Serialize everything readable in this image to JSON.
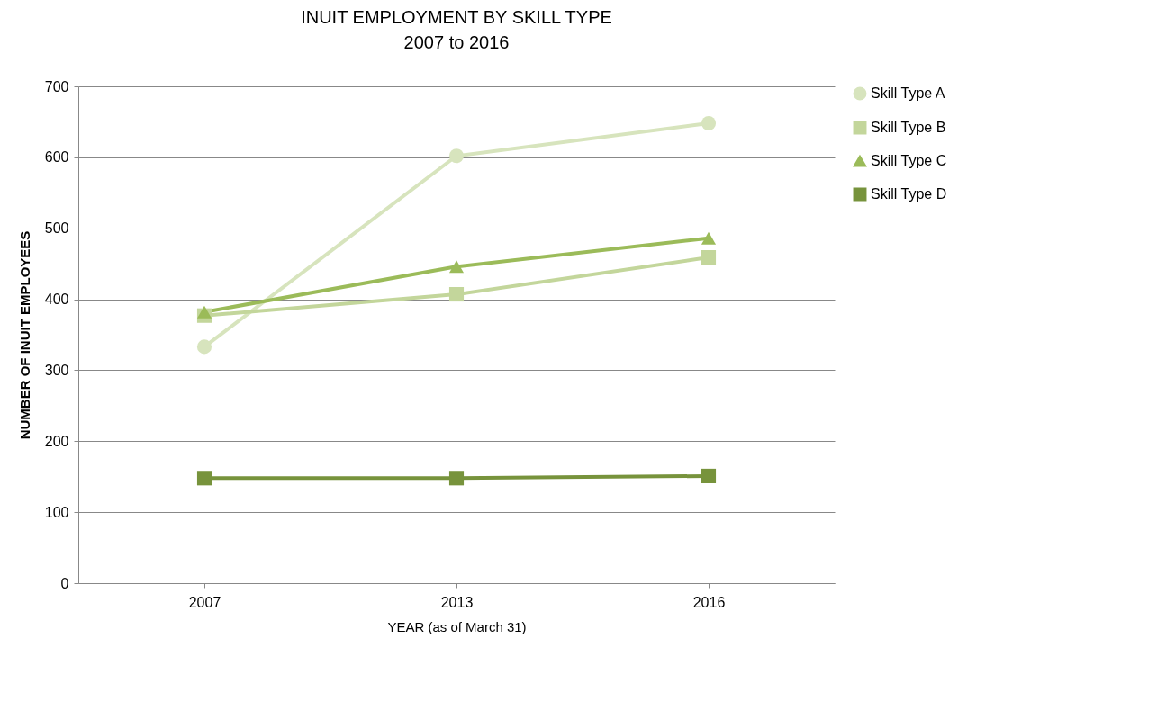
{
  "chart_data": {
    "type": "line",
    "title": "INUIT EMPLOYMENT BY SKILL TYPE",
    "subtitle": "2007 to 2016",
    "xlabel": "YEAR (as of March 31)",
    "ylabel": "NUMBER OF INUIT EMPLOYEES",
    "categories": [
      "2007",
      "2013",
      "2016"
    ],
    "series": [
      {
        "name": "Skill Type A",
        "color": "#d7e4bd",
        "marker": "circle",
        "values": [
          333,
          602,
          648
        ]
      },
      {
        "name": "Skill Type B",
        "color": "#c3d69b",
        "marker": "square",
        "values": [
          377,
          407,
          459
        ]
      },
      {
        "name": "Skill Type C",
        "color": "#9bbb59",
        "marker": "triangle",
        "values": [
          382,
          446,
          486
        ]
      },
      {
        "name": "Skill Type D",
        "color": "#77933c",
        "marker": "square",
        "values": [
          148,
          148,
          151
        ]
      }
    ],
    "ylim": [
      0,
      700
    ],
    "yticks": [
      0,
      100,
      200,
      300,
      400,
      500,
      600,
      700
    ],
    "grid": "y",
    "legend": "right"
  }
}
